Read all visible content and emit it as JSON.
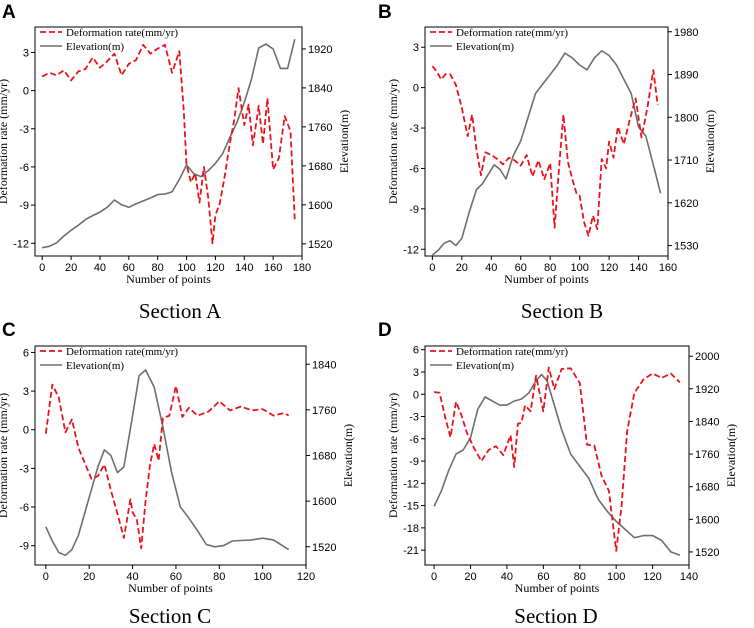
{
  "colors": {
    "deformation": "#e8141b",
    "elevation": "#6e6e6e",
    "axis": "#000000"
  },
  "chart_data": [
    {
      "type": "line",
      "panel": "A",
      "caption": "Section A",
      "xlabel": "Number of points",
      "ylabel_left": "Deformation rate (mm/yr)",
      "ylabel_right": "Elevation(m)",
      "legend": [
        "Deformation rate(mm/yr)",
        "Elevation(m)"
      ],
      "xlim": [
        -5,
        180
      ],
      "xticks": [
        0,
        20,
        40,
        60,
        80,
        100,
        120,
        140,
        160,
        180
      ],
      "ylim_left": [
        -13,
        5
      ],
      "yticks_left": [
        -12,
        -9,
        -6,
        -3,
        0,
        3
      ],
      "ylim_right": [
        1495,
        1965
      ],
      "yticks_right": [
        1520,
        1600,
        1680,
        1760,
        1840,
        1920
      ],
      "series": [
        {
          "name": "Deformation rate(mm/yr)",
          "axis": "left",
          "x": [
            0,
            5,
            10,
            15,
            20,
            25,
            30,
            35,
            40,
            45,
            50,
            55,
            60,
            65,
            70,
            75,
            80,
            85,
            90,
            95,
            98,
            100,
            103,
            106,
            109,
            112,
            115,
            118,
            120,
            123,
            126,
            130,
            133,
            136,
            140,
            143,
            146,
            150,
            153,
            156,
            160,
            164,
            168,
            172,
            175
          ],
          "y": [
            1.1,
            1.4,
            1.2,
            1.6,
            0.8,
            1.5,
            1.7,
            2.6,
            1.8,
            2.3,
            2.9,
            1.2,
            2.1,
            2.4,
            3.6,
            2.9,
            3.3,
            3.6,
            1.4,
            3.1,
            -1.5,
            -5.8,
            -7.2,
            -6.5,
            -8.8,
            -6.0,
            -8.4,
            -12.0,
            -9.8,
            -8.9,
            -7.0,
            -4.2,
            -2.3,
            0.2,
            -2.7,
            -1.1,
            -4.3,
            -1.2,
            -4.2,
            -0.6,
            -6.2,
            -5.3,
            -2.0,
            -3.2,
            -10.2
          ]
        },
        {
          "name": "Elevation(m)",
          "axis": "right",
          "x": [
            0,
            5,
            10,
            15,
            20,
            25,
            30,
            35,
            40,
            45,
            50,
            55,
            60,
            65,
            70,
            75,
            80,
            85,
            90,
            95,
            100,
            105,
            110,
            115,
            120,
            125,
            130,
            135,
            140,
            145,
            150,
            155,
            160,
            165,
            170,
            175
          ],
          "y": [
            1512,
            1515,
            1522,
            1536,
            1548,
            1558,
            1570,
            1578,
            1585,
            1595,
            1610,
            1600,
            1595,
            1602,
            1608,
            1614,
            1621,
            1622,
            1627,
            1652,
            1682,
            1664,
            1658,
            1670,
            1685,
            1705,
            1738,
            1770,
            1810,
            1858,
            1922,
            1930,
            1920,
            1880,
            1880,
            1940
          ]
        }
      ]
    },
    {
      "type": "line",
      "panel": "B",
      "caption": "Section B",
      "xlabel": "Number of points",
      "ylabel_left": "Deformation rate (mm/yr)",
      "ylabel_right": "Elevation(m)",
      "legend": [
        "Deformation rate(mm/yr)",
        "Elevation(m)"
      ],
      "xlim": [
        -5,
        160
      ],
      "xticks": [
        0,
        20,
        40,
        60,
        80,
        100,
        120,
        140,
        160
      ],
      "ylim_left": [
        -12.5,
        4.5
      ],
      "yticks_left": [
        -12,
        -9,
        -6,
        -3,
        0,
        3
      ],
      "ylim_right": [
        1508,
        1990
      ],
      "yticks_right": [
        1530,
        1620,
        1710,
        1800,
        1890,
        1980
      ],
      "series": [
        {
          "name": "Deformation rate(mm/yr)",
          "axis": "left",
          "x": [
            0,
            3,
            6,
            9,
            12,
            16,
            20,
            24,
            27,
            30,
            33,
            36,
            40,
            44,
            48,
            52,
            56,
            60,
            64,
            68,
            72,
            76,
            80,
            83,
            86,
            89,
            92,
            95,
            98,
            100,
            103,
            106,
            109,
            112,
            115,
            118,
            120,
            123,
            126,
            130,
            134,
            138,
            142,
            146,
            150,
            153
          ],
          "y": [
            1.6,
            1.2,
            0.6,
            1.0,
            1.0,
            0.2,
            -1.5,
            -3.6,
            -2.0,
            -4.6,
            -6.5,
            -4.8,
            -5.0,
            -5.3,
            -5.7,
            -5.2,
            -5.4,
            -5.8,
            -5.0,
            -6.6,
            -5.4,
            -6.8,
            -5.6,
            -10.4,
            -6.0,
            -2.0,
            -5.5,
            -6.8,
            -7.9,
            -8.0,
            -10.0,
            -11.0,
            -9.5,
            -10.5,
            -5.3,
            -6.0,
            -4.0,
            -5.2,
            -2.9,
            -4.2,
            -2.4,
            -0.8,
            -3.7,
            -1.5,
            1.3,
            -1.3
          ]
        },
        {
          "name": "Elevation(m)",
          "axis": "right",
          "x": [
            0,
            4,
            8,
            12,
            16,
            20,
            25,
            30,
            34,
            38,
            42,
            46,
            50,
            55,
            60,
            65,
            70,
            75,
            80,
            85,
            90,
            95,
            100,
            105,
            110,
            115,
            120,
            125,
            130,
            135,
            140,
            145,
            150,
            155
          ],
          "y": [
            1510,
            1520,
            1535,
            1540,
            1530,
            1545,
            1600,
            1648,
            1660,
            1680,
            1700,
            1690,
            1670,
            1720,
            1750,
            1800,
            1850,
            1870,
            1890,
            1910,
            1935,
            1925,
            1910,
            1900,
            1925,
            1940,
            1930,
            1910,
            1880,
            1850,
            1780,
            1760,
            1700,
            1640
          ]
        }
      ]
    },
    {
      "type": "line",
      "panel": "C",
      "caption": "Section C",
      "xlabel": "Number of points",
      "ylabel_left": "Deformation rate (mm/yr)",
      "ylabel_right": "Elevation(m)",
      "legend": [
        "Deformation rate(mm/yr)",
        "Elevation(m)"
      ],
      "xlim": [
        -5,
        120
      ],
      "xticks": [
        0,
        20,
        40,
        60,
        80,
        100,
        120
      ],
      "ylim_left": [
        -10.5,
        6.5
      ],
      "yticks_left": [
        -9,
        -6,
        -3,
        0,
        3,
        6
      ],
      "ylim_right": [
        1488,
        1872
      ],
      "yticks_right": [
        1520,
        1600,
        1680,
        1760,
        1840
      ],
      "series": [
        {
          "name": "Deformation rate(mm/yr)",
          "axis": "left",
          "x": [
            0,
            3,
            6,
            9,
            12,
            15,
            18,
            21,
            24,
            27,
            30,
            33,
            36,
            39,
            40,
            42,
            44,
            46,
            48,
            50,
            52,
            54,
            57,
            60,
            63,
            66,
            70,
            75,
            80,
            85,
            90,
            95,
            100,
            105,
            110,
            112
          ],
          "y": [
            -0.3,
            3.5,
            2.5,
            -0.2,
            0.8,
            -1.4,
            -2.6,
            -3.8,
            -3.6,
            -2.7,
            -4.7,
            -6.5,
            -8.4,
            -5.4,
            -6.4,
            -7.0,
            -9.2,
            -5.5,
            -2.8,
            -1.1,
            -2.4,
            0.9,
            1.1,
            3.4,
            1.0,
            1.7,
            1.1,
            1.4,
            2.2,
            1.5,
            1.8,
            1.5,
            1.6,
            1.1,
            1.3,
            1.1
          ]
        },
        {
          "name": "Elevation(m)",
          "axis": "right",
          "x": [
            0,
            3,
            6,
            9,
            12,
            15,
            18,
            21,
            24,
            27,
            30,
            33,
            36,
            40,
            43,
            46,
            50,
            54,
            58,
            62,
            66,
            70,
            74,
            78,
            82,
            86,
            90,
            95,
            100,
            105,
            110,
            112
          ],
          "y": [
            1555,
            1530,
            1510,
            1505,
            1515,
            1540,
            1580,
            1620,
            1660,
            1690,
            1680,
            1650,
            1660,
            1750,
            1820,
            1830,
            1800,
            1730,
            1650,
            1590,
            1570,
            1548,
            1524,
            1520,
            1522,
            1530,
            1531,
            1532,
            1535,
            1532,
            1520,
            1515
          ]
        }
      ]
    },
    {
      "type": "line",
      "panel": "D",
      "caption": "Section D",
      "xlabel": "Number of points",
      "ylabel_left": "Deformation rate (mm/yr)",
      "ylabel_right": "Elevation(m)",
      "legend": [
        "Deformation rate(mm/yr)",
        "Elevation(m)"
      ],
      "xlim": [
        -5,
        140
      ],
      "xticks": [
        0,
        20,
        40,
        60,
        80,
        100,
        120,
        140
      ],
      "ylim_left": [
        -23,
        6.5
      ],
      "yticks_left": [
        -21,
        -18,
        -15,
        -12,
        -9,
        -6,
        -3,
        0,
        3,
        6
      ],
      "ylim_right": [
        1488,
        2025
      ],
      "yticks_right": [
        1520,
        1600,
        1680,
        1760,
        1840,
        1920,
        2000
      ],
      "series": [
        {
          "name": "Deformation rate(mm/yr)",
          "axis": "left",
          "x": [
            0,
            3,
            6,
            9,
            12,
            15,
            18,
            22,
            26,
            30,
            34,
            38,
            42,
            44,
            46,
            48,
            50,
            53,
            56,
            60,
            63,
            66,
            70,
            75,
            80,
            84,
            88,
            92,
            96,
            100,
            103,
            106,
            110,
            115,
            120,
            125,
            130,
            135
          ],
          "y": [
            0.3,
            0.2,
            -3.0,
            -5.8,
            -1.0,
            -2.8,
            -5.2,
            -7.3,
            -9.0,
            -7.5,
            -7.0,
            -8.2,
            -5.5,
            -9.8,
            -4.0,
            -3.8,
            -1.5,
            -2.3,
            2.5,
            -2.3,
            3.6,
            0.7,
            3.4,
            3.5,
            1.5,
            -6.8,
            -6.9,
            -11.0,
            -13.0,
            -21.1,
            -15.0,
            -5.0,
            0.2,
            2.0,
            2.8,
            2.2,
            2.8,
            1.6
          ]
        },
        {
          "name": "Elevation(m)",
          "axis": "right",
          "x": [
            0,
            4,
            8,
            12,
            16,
            20,
            24,
            28,
            32,
            36,
            40,
            44,
            48,
            52,
            56,
            59,
            62,
            66,
            70,
            75,
            80,
            85,
            90,
            95,
            100,
            105,
            110,
            115,
            120,
            125,
            130,
            135
          ],
          "y": [
            1632,
            1670,
            1720,
            1760,
            1770,
            1800,
            1870,
            1900,
            1890,
            1880,
            1880,
            1890,
            1895,
            1910,
            1940,
            1955,
            1940,
            1880,
            1820,
            1760,
            1730,
            1700,
            1650,
            1620,
            1595,
            1575,
            1555,
            1560,
            1560,
            1548,
            1520,
            1512
          ]
        }
      ]
    }
  ]
}
